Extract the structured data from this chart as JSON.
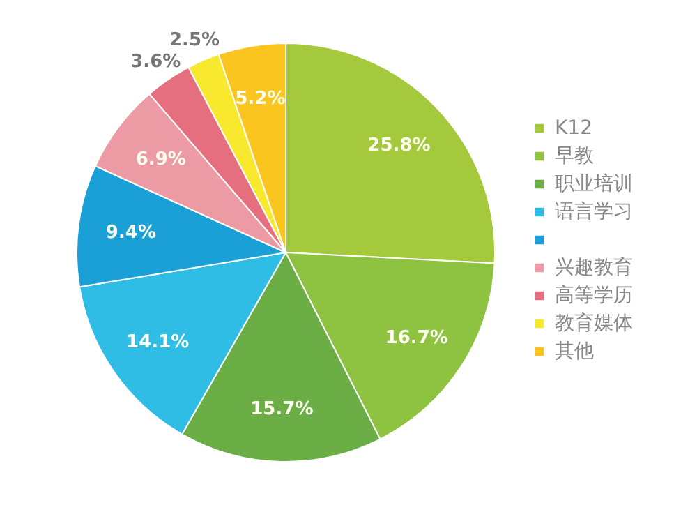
{
  "chart_data": {
    "type": "pie",
    "categories": [
      "K12",
      "早教",
      "职业培训",
      "语言学习",
      null,
      "兴趣教育",
      "高等学历",
      "教育媒体",
      "其他"
    ],
    "values": [
      25.8,
      16.7,
      15.7,
      14.1,
      9.4,
      6.9,
      3.6,
      2.5,
      5.2
    ],
    "colors": [
      "#a5c93c",
      "#8dc341",
      "#6aae45",
      "#2fbde6",
      "#1a9fd6",
      "#ec9aa3",
      "#e56e7f",
      "#f8e92e",
      "#f9c51e"
    ],
    "value_labels": [
      "25.8%",
      "16.7%",
      "15.7%",
      "14.1%",
      "9.4%",
      "6.9%",
      "3.6%",
      "2.5%",
      "5.2%"
    ],
    "legend": "right"
  }
}
